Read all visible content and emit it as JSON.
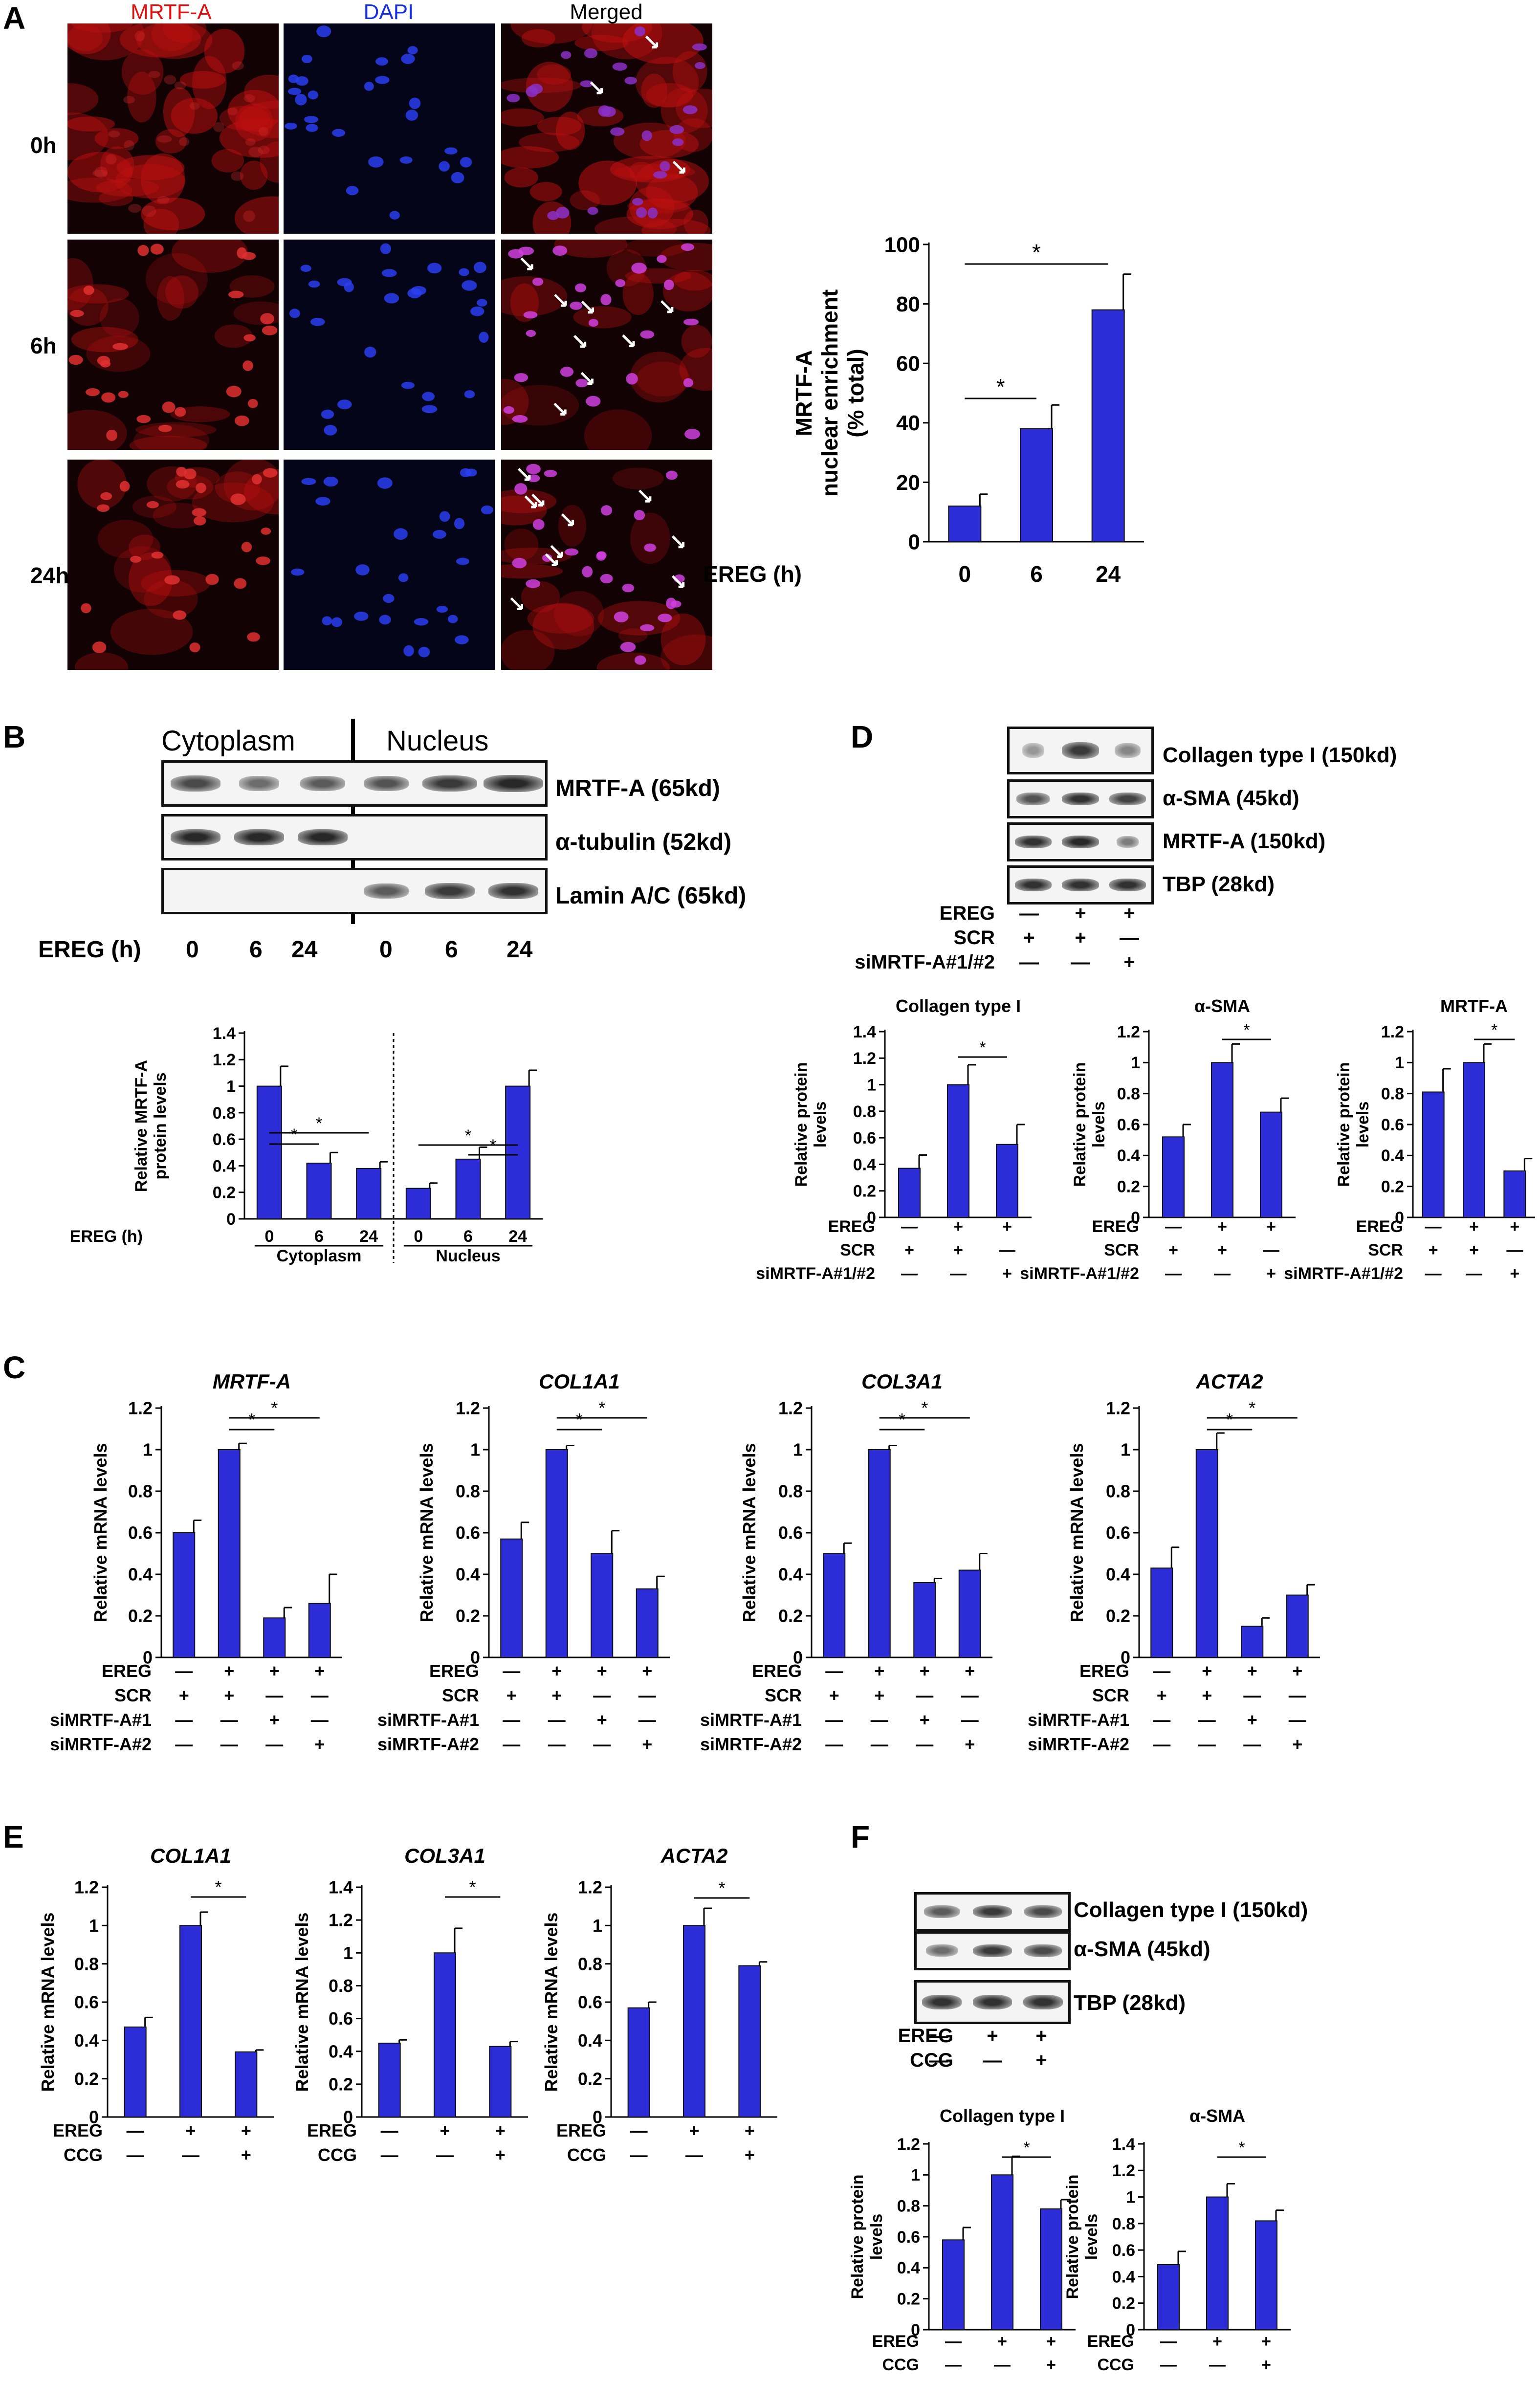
{
  "panel_letters": {
    "a": "A",
    "b": "B",
    "c": "C",
    "d": "D",
    "e": "E",
    "f": "F"
  },
  "panelA": {
    "col_headers": [
      "MRTF-A",
      "DAPI",
      "Merged"
    ],
    "row_labels": [
      "0h",
      "6h",
      "24h"
    ],
    "colors": {
      "mrtf": "#e01010",
      "dapi": "#1830e0",
      "merged": "#c020c0",
      "bar": "#2d2dd8"
    }
  },
  "panelB": {
    "region_labels": {
      "cyto": "Cytoplasm",
      "nuc": "Nucleus"
    },
    "bands": [
      "MRTF-A (65kd)",
      "α-tubulin (52kd)",
      "Lamin A/C (65kd)"
    ],
    "treatment": {
      "label": "EREG (h)",
      "values": [
        "0",
        "6",
        "24",
        "0",
        "6",
        "24"
      ]
    }
  },
  "panelD": {
    "bands": [
      "Collagen type I (150kd)",
      "α-SMA (45kd)",
      "MRTF-A (150kd)",
      "TBP (28kd)"
    ],
    "treatments": [
      {
        "label": "EREG",
        "signs": [
          "—",
          "+",
          "+"
        ]
      },
      {
        "label": "SCR",
        "signs": [
          "+",
          "+",
          "—"
        ]
      },
      {
        "label": "siMRTF-A#1/#2",
        "signs": [
          "—",
          "—",
          "+"
        ]
      }
    ]
  },
  "panelF": {
    "bands": [
      "Collagen type I (150kd)",
      "α-SMA (45kd)",
      "TBP (28kd)"
    ],
    "treatments": [
      {
        "label": "EREG",
        "signs": [
          "—",
          "+",
          "+"
        ]
      },
      {
        "label": "CCG",
        "signs": [
          "—",
          "—",
          "+"
        ]
      }
    ]
  },
  "chart_data": [
    {
      "id": "A",
      "type": "bar",
      "categories": [
        "0",
        "6",
        "24"
      ],
      "values": [
        12,
        38,
        78
      ],
      "errors": [
        4,
        8,
        12
      ],
      "ylabel_lines": [
        "MRTF-A",
        "nuclear enrichment",
        "(% total)"
      ],
      "ylim": [
        0,
        100
      ],
      "yticks": [
        0,
        20,
        40,
        60,
        80,
        100
      ],
      "treatments": [
        {
          "label": "EREG (h)",
          "signs": [
            "0",
            "6",
            "24"
          ]
        }
      ],
      "star": "*"
    },
    {
      "id": "B",
      "type": "bar",
      "categories": [
        "0",
        "6",
        "24",
        "0",
        "6",
        "24"
      ],
      "values": [
        1.0,
        0.42,
        0.38,
        0.23,
        0.45,
        1.0
      ],
      "errors": [
        0.15,
        0.08,
        0.05,
        0.04,
        0.09,
        0.12
      ],
      "ylabel_lines": [
        "Relative MRTF-A",
        "protein levels"
      ],
      "ylim": [
        0,
        1.4
      ],
      "yticks": [
        "0",
        "0.2",
        "0.4",
        "0.6",
        "0.8",
        "1",
        "1.2",
        "1.4"
      ],
      "treatments": [
        {
          "label": "EREG (h)",
          "signs": [
            "0",
            "6",
            "24",
            "0",
            "6",
            "24"
          ]
        }
      ],
      "groups": [
        "Cytoplasm",
        "Nucleus"
      ],
      "star": "*"
    },
    {
      "id": "D1",
      "type": "bar",
      "title": "Collagen type I",
      "categories": [
        "1",
        "2",
        "3"
      ],
      "values": [
        0.37,
        1.0,
        0.55
      ],
      "errors": [
        0.1,
        0.15,
        0.15
      ],
      "ylabel_lines": [
        "Relative protein",
        "levels"
      ],
      "ylim": [
        0,
        1.4
      ],
      "yticks": [
        "0",
        "0.2",
        "0.4",
        "0.6",
        "0.8",
        "1",
        "1.2",
        "1.4"
      ],
      "treatments": [
        {
          "label": "EREG",
          "signs": [
            "—",
            "+",
            "+"
          ]
        },
        {
          "label": "SCR",
          "signs": [
            "+",
            "+",
            "—"
          ]
        },
        {
          "label": "siMRTF-A#1/#2",
          "signs": [
            "—",
            "—",
            "+"
          ]
        }
      ],
      "star": "*"
    },
    {
      "id": "D2",
      "type": "bar",
      "title": "α-SMA",
      "categories": [
        "1",
        "2",
        "3"
      ],
      "values": [
        0.52,
        1.0,
        0.68
      ],
      "errors": [
        0.08,
        0.12,
        0.09
      ],
      "ylabel_lines": [
        "Relative protein",
        "levels"
      ],
      "ylim": [
        0,
        1.2
      ],
      "yticks": [
        "0",
        "0.2",
        "0.4",
        "0.6",
        "0.8",
        "1",
        "1.2"
      ],
      "treatments": [
        {
          "label": "EREG",
          "signs": [
            "—",
            "+",
            "+"
          ]
        },
        {
          "label": "SCR",
          "signs": [
            "+",
            "+",
            "—"
          ]
        },
        {
          "label": "siMRTF-A#1/#2",
          "signs": [
            "—",
            "—",
            "+"
          ]
        }
      ],
      "star": "*"
    },
    {
      "id": "D3",
      "type": "bar",
      "title": "MRTF-A",
      "categories": [
        "1",
        "2",
        "3"
      ],
      "values": [
        0.81,
        1.0,
        0.3
      ],
      "errors": [
        0.15,
        0.12,
        0.08
      ],
      "ylabel_lines": [
        "Relative protein",
        "levels"
      ],
      "ylim": [
        0,
        1.2
      ],
      "yticks": [
        "0",
        "0.2",
        "0.4",
        "0.6",
        "0.8",
        "1",
        "1.2"
      ],
      "treatments": [
        {
          "label": "EREG",
          "signs": [
            "—",
            "+",
            "+"
          ]
        },
        {
          "label": "SCR",
          "signs": [
            "+",
            "+",
            "—"
          ]
        },
        {
          "label": "siMRTF-A#1/#2",
          "signs": [
            "—",
            "—",
            "+"
          ]
        }
      ],
      "star": "*"
    },
    {
      "id": "C1",
      "type": "bar",
      "title": "MRTF-A",
      "categories": [
        "1",
        "2",
        "3",
        "4"
      ],
      "values": [
        0.6,
        1.0,
        0.19,
        0.26
      ],
      "errors": [
        0.06,
        0.03,
        0.05,
        0.14
      ],
      "ylabel_lines": [
        "Relative mRNA levels"
      ],
      "ylim": [
        0,
        1.2
      ],
      "yticks": [
        "0",
        "0.2",
        "0.4",
        "0.6",
        "0.8",
        "1",
        "1.2"
      ],
      "treatments": [
        {
          "label": "EREG",
          "signs": [
            "—",
            "+",
            "+",
            "+"
          ]
        },
        {
          "label": "SCR",
          "signs": [
            "+",
            "+",
            "—",
            "—"
          ]
        },
        {
          "label": "siMRTF-A#1",
          "signs": [
            "—",
            "—",
            "+",
            "—"
          ]
        },
        {
          "label": "siMRTF-A#2",
          "signs": [
            "—",
            "—",
            "—",
            "+"
          ]
        }
      ],
      "star": "*"
    },
    {
      "id": "C2",
      "type": "bar",
      "title": "COL1A1",
      "categories": [
        "1",
        "2",
        "3",
        "4"
      ],
      "values": [
        0.57,
        1.0,
        0.5,
        0.33
      ],
      "errors": [
        0.08,
        0.02,
        0.11,
        0.06
      ],
      "ylabel_lines": [
        "Relative mRNA levels"
      ],
      "ylim": [
        0,
        1.2
      ],
      "yticks": [
        "0",
        "0.2",
        "0.4",
        "0.6",
        "0.8",
        "1",
        "1.2"
      ],
      "treatments": [
        {
          "label": "EREG",
          "signs": [
            "—",
            "+",
            "+",
            "+"
          ]
        },
        {
          "label": "SCR",
          "signs": [
            "+",
            "+",
            "—",
            "—"
          ]
        },
        {
          "label": "siMRTF-A#1",
          "signs": [
            "—",
            "—",
            "+",
            "—"
          ]
        },
        {
          "label": "siMRTF-A#2",
          "signs": [
            "—",
            "—",
            "—",
            "+"
          ]
        }
      ],
      "star": "*"
    },
    {
      "id": "C3",
      "type": "bar",
      "title": "COL3A1",
      "categories": [
        "1",
        "2",
        "3",
        "4"
      ],
      "values": [
        0.5,
        1.0,
        0.36,
        0.42
      ],
      "errors": [
        0.05,
        0.02,
        0.02,
        0.08
      ],
      "ylabel_lines": [
        "Relative mRNA levels"
      ],
      "ylim": [
        0,
        1.2
      ],
      "yticks": [
        "0",
        "0.2",
        "0.4",
        "0.6",
        "0.8",
        "1",
        "1.2"
      ],
      "treatments": [
        {
          "label": "EREG",
          "signs": [
            "—",
            "+",
            "+",
            "+"
          ]
        },
        {
          "label": "SCR",
          "signs": [
            "+",
            "+",
            "—",
            "—"
          ]
        },
        {
          "label": "siMRTF-A#1",
          "signs": [
            "—",
            "—",
            "+",
            "—"
          ]
        },
        {
          "label": "siMRTF-A#2",
          "signs": [
            "—",
            "—",
            "—",
            "+"
          ]
        }
      ],
      "star": "*"
    },
    {
      "id": "C4",
      "type": "bar",
      "title": "ACTA2",
      "categories": [
        "1",
        "2",
        "3",
        "4"
      ],
      "values": [
        0.43,
        1.0,
        0.15,
        0.3
      ],
      "errors": [
        0.1,
        0.08,
        0.04,
        0.05
      ],
      "ylabel_lines": [
        "Relative mRNA levels"
      ],
      "ylim": [
        0,
        1.2
      ],
      "yticks": [
        "0",
        "0.2",
        "0.4",
        "0.6",
        "0.8",
        "1",
        "1.2"
      ],
      "treatments": [
        {
          "label": "EREG",
          "signs": [
            "—",
            "+",
            "+",
            "+"
          ]
        },
        {
          "label": "SCR",
          "signs": [
            "+",
            "+",
            "—",
            "—"
          ]
        },
        {
          "label": "siMRTF-A#1",
          "signs": [
            "—",
            "—",
            "+",
            "—"
          ]
        },
        {
          "label": "siMRTF-A#2",
          "signs": [
            "—",
            "—",
            "—",
            "+"
          ]
        }
      ],
      "star": "*"
    },
    {
      "id": "E1",
      "type": "bar",
      "title": "COL1A1",
      "categories": [
        "1",
        "2",
        "3"
      ],
      "values": [
        0.47,
        1.0,
        0.34
      ],
      "errors": [
        0.05,
        0.07,
        0.01
      ],
      "ylabel_lines": [
        "Relative mRNA levels"
      ],
      "ylim": [
        0,
        1.2
      ],
      "yticks": [
        "0",
        "0.2",
        "0.4",
        "0.6",
        "0.8",
        "1",
        "1.2"
      ],
      "treatments": [
        {
          "label": "EREG",
          "signs": [
            "—",
            "+",
            "+"
          ]
        },
        {
          "label": "CCG",
          "signs": [
            "—",
            "—",
            "+"
          ]
        }
      ],
      "star": "*"
    },
    {
      "id": "E2",
      "type": "bar",
      "title": "COL3A1",
      "categories": [
        "1",
        "2",
        "3"
      ],
      "values": [
        0.45,
        1.0,
        0.43
      ],
      "errors": [
        0.02,
        0.15,
        0.03
      ],
      "ylabel_lines": [
        "Relative mRNA levels"
      ],
      "ylim": [
        0,
        1.4
      ],
      "yticks": [
        "0",
        "0.2",
        "0.4",
        "0.6",
        "0.8",
        "1",
        "1.2",
        "1.4"
      ],
      "treatments": [
        {
          "label": "EREG",
          "signs": [
            "—",
            "+",
            "+"
          ]
        },
        {
          "label": "CCG",
          "signs": [
            "—",
            "—",
            "+"
          ]
        }
      ],
      "star": "*"
    },
    {
      "id": "E3",
      "type": "bar",
      "title": "ACTA2",
      "categories": [
        "1",
        "2",
        "3"
      ],
      "values": [
        0.57,
        1.0,
        0.79
      ],
      "errors": [
        0.03,
        0.09,
        0.02
      ],
      "ylabel_lines": [
        "Relative mRNA levels"
      ],
      "ylim": [
        0,
        1.2
      ],
      "yticks": [
        "0",
        "0.2",
        "0.4",
        "0.6",
        "0.8",
        "1",
        "1.2"
      ],
      "treatments": [
        {
          "label": "EREG",
          "signs": [
            "—",
            "+",
            "+"
          ]
        },
        {
          "label": "CCG",
          "signs": [
            "—",
            "—",
            "+"
          ]
        }
      ],
      "star": "*"
    },
    {
      "id": "F1",
      "type": "bar",
      "title": "Collagen type I",
      "categories": [
        "1",
        "2",
        "3"
      ],
      "values": [
        0.58,
        1.0,
        0.78
      ],
      "errors": [
        0.08,
        0.12,
        0.06
      ],
      "ylabel_lines": [
        "Relative protein",
        "levels"
      ],
      "ylim": [
        0,
        1.2
      ],
      "yticks": [
        "0",
        "0.2",
        "0.4",
        "0.6",
        "0.8",
        "1",
        "1.2"
      ],
      "treatments": [
        {
          "label": "EREG",
          "signs": [
            "—",
            "+",
            "+"
          ]
        },
        {
          "label": "CCG",
          "signs": [
            "—",
            "—",
            "+"
          ]
        }
      ],
      "star": "*"
    },
    {
      "id": "F2",
      "type": "bar",
      "title": "α-SMA",
      "categories": [
        "1",
        "2",
        "3"
      ],
      "values": [
        0.49,
        1.0,
        0.82
      ],
      "errors": [
        0.1,
        0.1,
        0.08
      ],
      "ylabel_lines": [
        "Relative protein",
        "levels"
      ],
      "ylim": [
        0,
        1.4
      ],
      "yticks": [
        "0",
        "0.2",
        "0.4",
        "0.6",
        "0.8",
        "1",
        "1.2",
        "1.4"
      ],
      "treatments": [
        {
          "label": "EREG",
          "signs": [
            "—",
            "+",
            "+"
          ]
        },
        {
          "label": "CCG",
          "signs": [
            "—",
            "—",
            "+"
          ]
        }
      ],
      "star": "*"
    }
  ]
}
